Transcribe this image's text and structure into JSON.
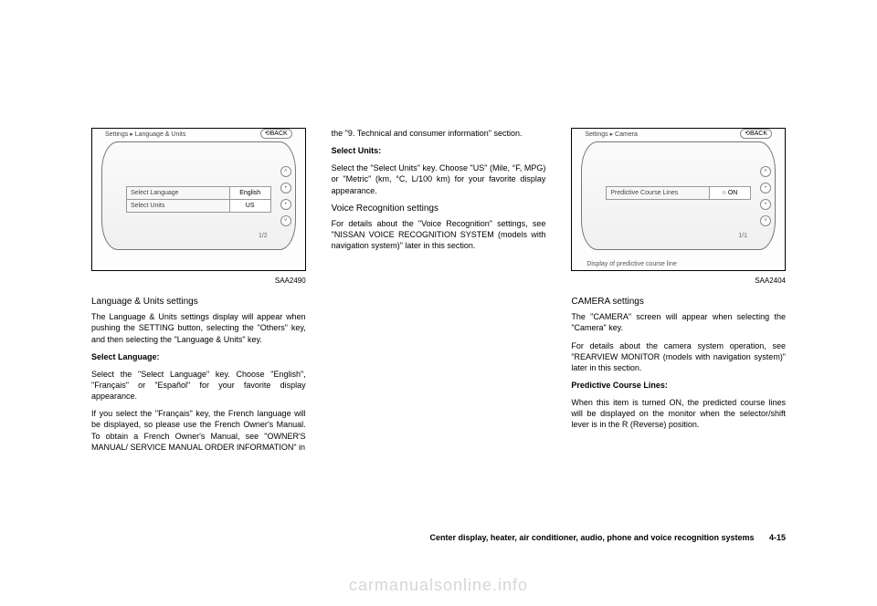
{
  "screens": {
    "lang": {
      "breadcrumb": "Settings ▸ Language & Units",
      "back": "⟲BACK",
      "rows": [
        {
          "label": "Select Language",
          "value": "English"
        },
        {
          "label": "Select Units",
          "value": "US"
        }
      ],
      "pager": "1/2",
      "caption": "SAA2490"
    },
    "camera": {
      "breadcrumb": "Settings ▸ Camera",
      "back": "⟲BACK",
      "rows": [
        {
          "label": "Predictive Course Lines",
          "value": "○ ON"
        }
      ],
      "pager": "1/1",
      "bottom": "Display of predictive course line",
      "caption": "SAA2404"
    }
  },
  "col1": {
    "h1": "Language & Units settings",
    "p1": "The Language & Units settings display will appear when pushing the SETTING button, selecting the \"Others\" key, and then selecting the \"Language & Units\" key.",
    "h2": "Select Language:",
    "p2": "Select the \"Select Language\" key. Choose \"English\", \"Français\" or \"Español\" for your favorite display appearance.",
    "p3": "If you select the \"Français\" key, the French language will be displayed, so please use the French Owner's Manual. To obtain a French Owner's Manual, see \"OWNER'S MANUAL/ SERVICE MANUAL ORDER INFORMATION\" in"
  },
  "col2": {
    "p1": "the \"9. Technical and consumer information\" section.",
    "h1": "Select Units:",
    "p2": "Select the \"Select Units\" key. Choose \"US\" (Mile, °F, MPG) or \"Metric\" (km, °C, L/100 km) for your favorite display appearance.",
    "h2": "Voice Recognition settings",
    "p3": "For details about the \"Voice Recognition\" settings, see \"NISSAN VOICE RECOGNITION SYSTEM (models with navigation system)\" later in this section."
  },
  "col3": {
    "h1": "CAMERA settings",
    "p1": "The \"CAMERA\" screen will appear when selecting the \"Camera\" key.",
    "p2": "For details about the camera system operation, see \"REARVIEW MONITOR (models with navigation system)\" later in this section.",
    "h2": "Predictive Course Lines:",
    "p3": "When this item is turned ON, the predicted course lines will be displayed on the monitor when the selector/shift lever is in the R (Reverse) position."
  },
  "footer": {
    "text": "Center display, heater, air conditioner, audio, phone and voice recognition systems",
    "page": "4-15"
  },
  "watermark": "carmanualsonline.info"
}
